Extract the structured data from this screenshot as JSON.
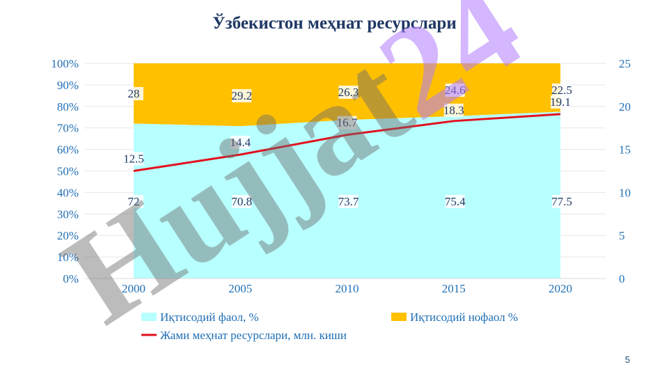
{
  "slide": {
    "page_number": "5"
  },
  "chart_data": {
    "type": "area",
    "title": "Ўзбекистон меҳнат ресурслари",
    "categories": [
      "2000",
      "2005",
      "2010",
      "2015",
      "2020"
    ],
    "series": [
      {
        "name": "Иқтисодий фаол, %",
        "type": "stacked-area-percent",
        "axis": "left",
        "values": [
          72,
          70.8,
          73.7,
          75.4,
          77.5
        ],
        "color": "#b8ffff"
      },
      {
        "name": "Иқтисодий нофаол %",
        "type": "stacked-area-percent",
        "axis": "left",
        "values": [
          28,
          29.2,
          26.3,
          24.6,
          22.5
        ],
        "color": "#ffc000"
      },
      {
        "name": "Жами меҳнат ресурслари, млн. киши",
        "type": "line",
        "axis": "right",
        "values": [
          12.5,
          14.4,
          16.7,
          18.3,
          19.1
        ],
        "color": "#e3101e"
      }
    ],
    "left_axis": {
      "ylim": [
        0,
        100
      ],
      "ticks": [
        "0%",
        "10%",
        "20%",
        "30%",
        "40%",
        "50%",
        "60%",
        "70%",
        "80%",
        "90%",
        "100%"
      ]
    },
    "right_axis": {
      "ylim": [
        0,
        25
      ],
      "ticks": [
        "0",
        "5",
        "10",
        "15",
        "20",
        "25"
      ]
    },
    "grid": true,
    "legend_position": "bottom",
    "watermark": "Hujjat24",
    "colors": {
      "axis_text": "#1f6fb5",
      "title": "#1f3864",
      "grid": "#e6e6e6"
    }
  }
}
